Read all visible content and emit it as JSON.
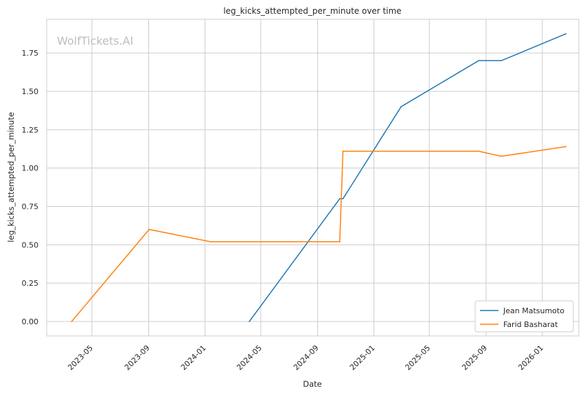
{
  "chart_data": {
    "type": "line",
    "title": "leg_kicks_attempted_per_minute over time",
    "xlabel": "Date",
    "ylabel": "leg_kicks_attempted_per_minute",
    "watermark": "WolfTickets.AI",
    "grid": true,
    "legend_position": "lower right",
    "xlim": [
      "2023-01-23",
      "2026-03-21"
    ],
    "ylim": [
      -0.094,
      1.97
    ],
    "x_ticks": [
      "2023-05",
      "2023-09",
      "2024-01",
      "2024-05",
      "2024-09",
      "2025-01",
      "2025-05",
      "2025-09",
      "2026-01"
    ],
    "y_ticks": [
      "0.00",
      "0.25",
      "0.50",
      "0.75",
      "1.00",
      "1.25",
      "1.50",
      "1.75"
    ],
    "series": [
      {
        "name": "Jean Matsumoto",
        "color": "#1f77b4",
        "points": [
          {
            "x": "2024-04-06",
            "y": 0.0
          },
          {
            "x": "2024-10-19",
            "y": 0.8
          },
          {
            "x": "2024-10-26",
            "y": 0.8
          },
          {
            "x": "2025-03-01",
            "y": 1.4
          },
          {
            "x": "2025-08-16",
            "y": 1.7
          },
          {
            "x": "2025-10-04",
            "y": 1.7
          },
          {
            "x": "2026-02-21",
            "y": 1.875
          }
        ]
      },
      {
        "name": "Farid Basharat",
        "color": "#ff7f0e",
        "points": [
          {
            "x": "2023-03-18",
            "y": 0.0
          },
          {
            "x": "2023-09-02",
            "y": 0.6
          },
          {
            "x": "2024-01-13",
            "y": 0.52
          },
          {
            "x": "2024-10-19",
            "y": 0.52
          },
          {
            "x": "2024-10-26",
            "y": 1.11
          },
          {
            "x": "2025-08-16",
            "y": 1.11
          },
          {
            "x": "2025-10-04",
            "y": 1.077
          },
          {
            "x": "2026-02-21",
            "y": 1.14
          }
        ]
      }
    ]
  }
}
